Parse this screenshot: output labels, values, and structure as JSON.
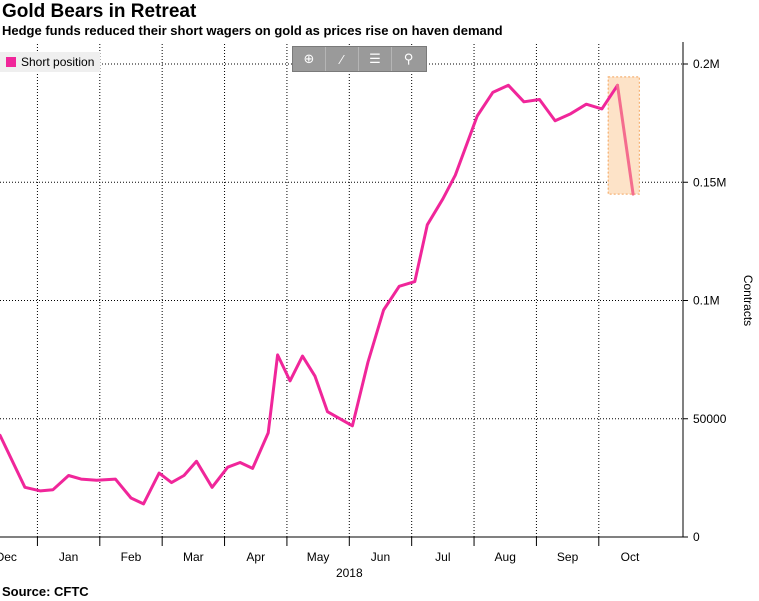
{
  "chart_data": {
    "type": "line",
    "title": "Gold Bears in Retreat",
    "subtitle": "Hedge funds reduced their short wagers on gold as prices rise on haven demand",
    "source": "Source: CFTC",
    "ylabel": "Contracts",
    "xlabel_year": "2018",
    "ylim": [
      0,
      200000
    ],
    "yticks": [
      {
        "value": 0,
        "label": "0"
      },
      {
        "value": 50000,
        "label": "50000"
      },
      {
        "value": 100000,
        "label": "0.1M"
      },
      {
        "value": 150000,
        "label": "0.15M"
      },
      {
        "value": 200000,
        "label": "0.2M"
      }
    ],
    "xlim": [
      -0.1,
      10.85
    ],
    "months": [
      {
        "label": "Dec",
        "center": 0.0,
        "boundary": 0.5
      },
      {
        "label": "Jan",
        "center": 1.0,
        "boundary": 1.5
      },
      {
        "label": "Feb",
        "center": 2.0,
        "boundary": 2.5
      },
      {
        "label": "Mar",
        "center": 3.0,
        "boundary": 3.5
      },
      {
        "label": "Apr",
        "center": 4.0,
        "boundary": 4.5
      },
      {
        "label": "May",
        "center": 5.0,
        "boundary": 5.5
      },
      {
        "label": "Jun",
        "center": 6.0,
        "boundary": 6.5
      },
      {
        "label": "Jul",
        "center": 7.0,
        "boundary": 7.5
      },
      {
        "label": "Aug",
        "center": 8.0,
        "boundary": 8.5
      },
      {
        "label": "Sep",
        "center": 9.0,
        "boundary": 9.5
      },
      {
        "label": "Oct",
        "center": 10.0,
        "boundary": null
      }
    ],
    "series": [
      {
        "name": "Short position",
        "color": "#f0269a",
        "points": [
          [
            -0.1,
            43000
          ],
          [
            0.3,
            21000
          ],
          [
            0.55,
            19500
          ],
          [
            0.75,
            20000
          ],
          [
            1.0,
            26000
          ],
          [
            1.2,
            24500
          ],
          [
            1.45,
            24000
          ],
          [
            1.75,
            24500
          ],
          [
            2.0,
            16500
          ],
          [
            2.2,
            14000
          ],
          [
            2.45,
            27000
          ],
          [
            2.65,
            23000
          ],
          [
            2.85,
            26000
          ],
          [
            3.05,
            32000
          ],
          [
            3.3,
            21000
          ],
          [
            3.55,
            29500
          ],
          [
            3.75,
            31500
          ],
          [
            3.95,
            29000
          ],
          [
            4.2,
            44000
          ],
          [
            4.35,
            77000
          ],
          [
            4.55,
            66000
          ],
          [
            4.75,
            76500
          ],
          [
            4.95,
            68000
          ],
          [
            5.15,
            53000
          ],
          [
            5.55,
            47000
          ],
          [
            5.8,
            74000
          ],
          [
            6.05,
            96000
          ],
          [
            6.3,
            106000
          ],
          [
            6.55,
            108000
          ],
          [
            6.75,
            132000
          ],
          [
            7.0,
            143000
          ],
          [
            7.2,
            153000
          ],
          [
            7.55,
            178000
          ],
          [
            7.8,
            188000
          ],
          [
            8.05,
            191000
          ],
          [
            8.3,
            184000
          ],
          [
            8.55,
            185000
          ],
          [
            8.8,
            176000
          ],
          [
            9.05,
            179000
          ],
          [
            9.3,
            183000
          ],
          [
            9.55,
            181000
          ],
          [
            9.8,
            191000
          ]
        ]
      }
    ],
    "highlight": {
      "x_range": [
        9.65,
        10.15
      ],
      "y_range": [
        145000,
        192000
      ],
      "color": "#fde3c8",
      "border_color": "#f4a35a",
      "segment_color": "#f46d8e",
      "points": [
        [
          9.8,
          191000
        ],
        [
          10.05,
          145000
        ]
      ]
    },
    "legend": {
      "label": "Short position",
      "color": "#f0269a",
      "position": "top-left"
    }
  },
  "toolbar": {
    "crosshair_glyph": "⊕",
    "draw_glyph": "⁄",
    "layout_glyph": "☰",
    "zoom_glyph": "⚲"
  }
}
